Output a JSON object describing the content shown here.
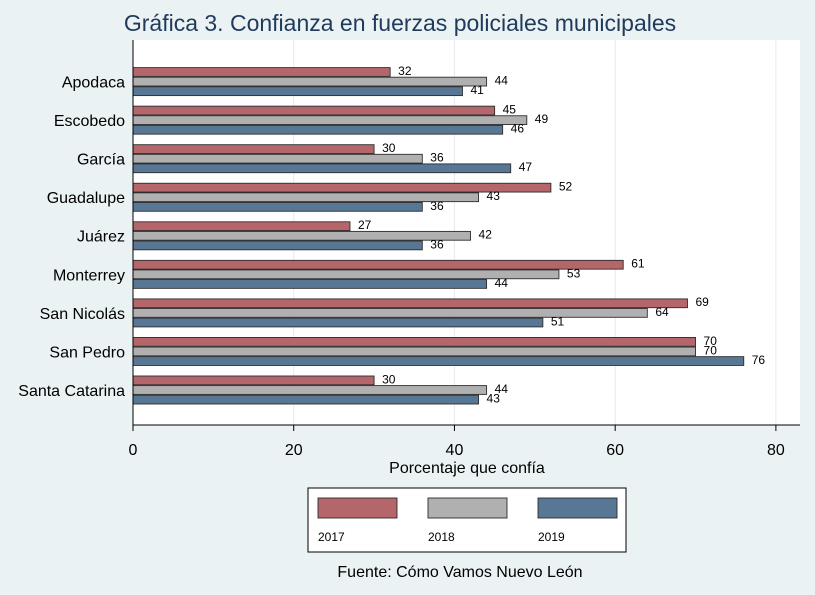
{
  "chart_data": {
    "type": "bar",
    "orientation": "horizontal",
    "title": "Gráfica 3. Confianza en fuerzas policiales municipales",
    "xlabel": "Porcentaje que confía",
    "ylabel": "",
    "xlim": [
      0,
      83
    ],
    "xticks": [
      0,
      20,
      40,
      60,
      80
    ],
    "grid": true,
    "legend_position": "bottom",
    "categories": [
      "Apodaca",
      "Escobedo",
      "García",
      "Guadalupe",
      "Juárez",
      "Monterrey",
      "San Nicolás",
      "San Pedro",
      "Santa Catarina"
    ],
    "series": [
      {
        "name": "2017",
        "color": "#b4666b",
        "values": [
          32,
          45,
          30,
          52,
          27,
          61,
          69,
          70,
          30
        ]
      },
      {
        "name": "2018",
        "color": "#b0b0b0",
        "values": [
          44,
          49,
          36,
          43,
          42,
          53,
          64,
          70,
          44
        ]
      },
      {
        "name": "2019",
        "color": "#587795",
        "values": [
          41,
          46,
          47,
          36,
          36,
          44,
          51,
          76,
          43
        ]
      }
    ],
    "source": "Fuente: Cómo Vamos Nuevo León"
  }
}
